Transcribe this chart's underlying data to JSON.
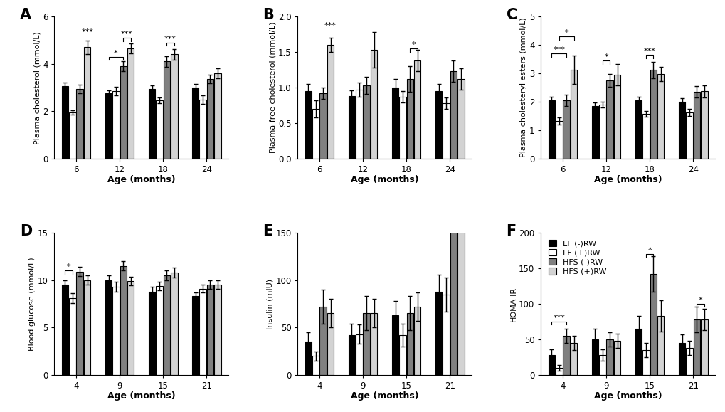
{
  "panel_A": {
    "label": "A",
    "ylabel": "Plasma cholesterol (mmol/L)",
    "xlabel": "Age (months)",
    "xticks": [
      6,
      12,
      18,
      24
    ],
    "ylim": [
      0,
      6
    ],
    "yticks": [
      0,
      2,
      4,
      6
    ],
    "means": {
      "LF_minus": [
        3.05,
        2.75,
        2.95,
        3.0
      ],
      "LF_plus": [
        1.95,
        2.85,
        2.45,
        2.5
      ],
      "HFS_minus": [
        2.95,
        3.9,
        4.1,
        3.35
      ],
      "HFS_plus": [
        4.7,
        4.65,
        4.4,
        3.6
      ]
    },
    "sems": {
      "LF_minus": [
        0.15,
        0.12,
        0.15,
        0.15
      ],
      "LF_plus": [
        0.1,
        0.18,
        0.12,
        0.18
      ],
      "HFS_minus": [
        0.18,
        0.2,
        0.22,
        0.18
      ],
      "HFS_plus": [
        0.28,
        0.22,
        0.22,
        0.2
      ]
    },
    "sig_brackets": [
      {
        "age_idx": 0,
        "b1": 3,
        "b2": null,
        "label": "***",
        "y": 5.2
      },
      {
        "age_idx": 1,
        "b1": 0,
        "b2": 2,
        "label": "*",
        "y": 4.3
      },
      {
        "age_idx": 1,
        "b1": 2,
        "b2": 3,
        "label": "***",
        "y": 5.1
      },
      {
        "age_idx": 2,
        "b1": 2,
        "b2": 3,
        "label": "***",
        "y": 4.9
      }
    ]
  },
  "panel_B": {
    "label": "B",
    "ylabel": "Plasma free cholesterol (mmol/L)",
    "xlabel": "Age (months)",
    "xticks": [
      6,
      12,
      18,
      24
    ],
    "ylim": [
      0.0,
      2.0
    ],
    "yticks": [
      0.0,
      0.5,
      1.0,
      1.5,
      2.0
    ],
    "means": {
      "LF_minus": [
        0.95,
        0.88,
        1.0,
        0.95
      ],
      "LF_plus": [
        0.7,
        0.97,
        0.87,
        0.78
      ],
      "HFS_minus": [
        0.92,
        1.03,
        1.12,
        1.23
      ],
      "HFS_plus": [
        1.6,
        1.53,
        1.38,
        1.12
      ]
    },
    "sems": {
      "LF_minus": [
        0.1,
        0.08,
        0.12,
        0.1
      ],
      "LF_plus": [
        0.12,
        0.1,
        0.08,
        0.08
      ],
      "HFS_minus": [
        0.08,
        0.12,
        0.18,
        0.15
      ],
      "HFS_plus": [
        0.1,
        0.25,
        0.15,
        0.15
      ]
    },
    "sig_brackets": [
      {
        "age_idx": 0,
        "b1": 3,
        "b2": null,
        "label": "***",
        "y": 1.82
      },
      {
        "age_idx": 2,
        "b1": 2,
        "b2": 3,
        "label": "*",
        "y": 1.55
      }
    ]
  },
  "panel_C": {
    "label": "C",
    "ylabel": "Plasma cholesteryl esters (mmol/L)",
    "xlabel": "Age (months)",
    "xticks": [
      6,
      12,
      18,
      24
    ],
    "ylim": [
      0,
      5
    ],
    "yticks": [
      0,
      1,
      2,
      3,
      4,
      5
    ],
    "means": {
      "LF_minus": [
        2.05,
        1.85,
        2.05,
        2.0
      ],
      "LF_plus": [
        1.32,
        1.9,
        1.58,
        1.62
      ],
      "HFS_minus": [
        2.05,
        2.75,
        3.12,
        2.35
      ],
      "HFS_plus": [
        3.12,
        2.95,
        2.97,
        2.37
      ]
    },
    "sems": {
      "LF_minus": [
        0.12,
        0.12,
        0.12,
        0.12
      ],
      "LF_plus": [
        0.12,
        0.1,
        0.1,
        0.12
      ],
      "HFS_minus": [
        0.2,
        0.22,
        0.28,
        0.2
      ],
      "HFS_plus": [
        0.5,
        0.38,
        0.25,
        0.22
      ]
    },
    "sig_brackets": [
      {
        "age_idx": 0,
        "b1": 0,
        "b2": 2,
        "label": "***",
        "y": 3.7
      },
      {
        "age_idx": 0,
        "b1": 1,
        "b2": 3,
        "label": "*",
        "y": 4.3
      },
      {
        "age_idx": 1,
        "b1": 1,
        "b2": 2,
        "label": "*",
        "y": 3.45
      },
      {
        "age_idx": 2,
        "b1": 1,
        "b2": 2,
        "label": "***",
        "y": 3.65
      }
    ]
  },
  "panel_D": {
    "label": "D",
    "ylabel": "Blood glucose (mmol/L)",
    "xlabel": "Age (months)",
    "xticks": [
      4,
      9,
      15,
      21
    ],
    "ylim": [
      0,
      15
    ],
    "yticks": [
      0,
      5,
      10,
      15
    ],
    "means": {
      "LF_minus": [
        9.5,
        10.0,
        8.8,
        8.3
      ],
      "LF_plus": [
        8.1,
        9.3,
        9.4,
        9.1
      ],
      "HFS_minus": [
        10.9,
        11.5,
        10.5,
        9.5
      ],
      "HFS_plus": [
        10.0,
        9.9,
        10.8,
        9.5
      ]
    },
    "sems": {
      "LF_minus": [
        0.5,
        0.5,
        0.5,
        0.4
      ],
      "LF_plus": [
        0.5,
        0.55,
        0.45,
        0.4
      ],
      "HFS_minus": [
        0.5,
        0.5,
        0.5,
        0.45
      ],
      "HFS_plus": [
        0.5,
        0.45,
        0.5,
        0.45
      ]
    },
    "sig_brackets": [
      {
        "age_idx": 0,
        "b1": 0,
        "b2": 1,
        "label": "*",
        "y": 11.0
      }
    ]
  },
  "panel_E": {
    "label": "E",
    "ylabel": "Insulin (mIU)",
    "xlabel": "Age (months)",
    "xticks": [
      4,
      9,
      15,
      21
    ],
    "ylim": [
      0,
      150
    ],
    "yticks": [
      0,
      50,
      100,
      150
    ],
    "means": {
      "LF_minus": [
        35,
        42,
        63,
        88
      ],
      "LF_plus": [
        20,
        43,
        42,
        85
      ],
      "HFS_minus": [
        72,
        65,
        65,
        160
      ],
      "HFS_plus": [
        65,
        65,
        72,
        160
      ]
    },
    "sems": {
      "LF_minus": [
        10,
        12,
        15,
        18
      ],
      "LF_plus": [
        5,
        10,
        12,
        18
      ],
      "HFS_minus": [
        18,
        18,
        18,
        0
      ],
      "HFS_plus": [
        15,
        15,
        15,
        0
      ]
    },
    "sig_brackets": []
  },
  "panel_F": {
    "label": "F",
    "ylabel": "HOMA-IR",
    "xlabel": "Age (months)",
    "xticks": [
      4,
      9,
      15,
      21
    ],
    "ylim": [
      0,
      200
    ],
    "yticks": [
      0,
      50,
      100,
      150,
      200
    ],
    "means": {
      "LF_minus": [
        28,
        50,
        65,
        45
      ],
      "LF_plus": [
        10,
        28,
        35,
        38
      ],
      "HFS_minus": [
        55,
        50,
        142,
        78
      ],
      "HFS_plus": [
        45,
        48,
        83,
        78
      ]
    },
    "sems": {
      "LF_minus": [
        8,
        15,
        18,
        12
      ],
      "LF_plus": [
        4,
        8,
        10,
        10
      ],
      "HFS_minus": [
        10,
        10,
        25,
        18
      ],
      "HFS_plus": [
        10,
        10,
        22,
        15
      ]
    },
    "sig_brackets": [
      {
        "age_idx": 0,
        "b1": 0,
        "b2": 2,
        "label": "***",
        "y": 75
      },
      {
        "age_idx": 2,
        "b1": 1,
        "b2": 2,
        "label": "*",
        "y": 170
      },
      {
        "age_idx": 3,
        "b1": 2,
        "b2": 3,
        "label": "*",
        "y": 100
      }
    ],
    "legend": {
      "labels": [
        "LF (-)RW",
        "LF (+)RW",
        "HFS (-)RW",
        "HFS (+)RW"
      ],
      "colors": [
        "black",
        "white",
        "gray",
        "lightgray"
      ],
      "edgecolors": [
        "black",
        "black",
        "black",
        "black"
      ]
    }
  },
  "bar_colors": [
    "black",
    "white",
    "gray",
    "lightgray"
  ],
  "bar_edgecolors": [
    "black",
    "black",
    "black",
    "black"
  ],
  "bar_width": 0.17,
  "elinewidth": 1.0,
  "ecapsize": 2.5
}
